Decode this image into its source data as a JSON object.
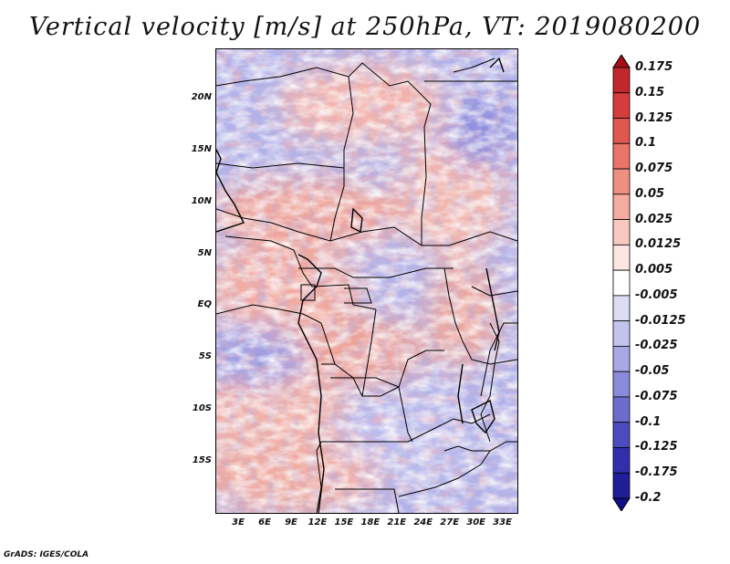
{
  "title": "Vertical velocity [m/s] at 250hPa, VT: 2019080200",
  "footer": "GrADS: IGES/COLA",
  "map": {
    "lat_labels": [
      {
        "label": "20N",
        "lat": 20
      },
      {
        "label": "15N",
        "lat": 15
      },
      {
        "label": "10N",
        "lat": 10
      },
      {
        "label": "5N",
        "lat": 5
      },
      {
        "label": "EQ",
        "lat": 0
      },
      {
        "label": "5S",
        "lat": -5
      },
      {
        "label": "10S",
        "lat": -10
      },
      {
        "label": "15S",
        "lat": -15
      }
    ],
    "lon_labels": [
      {
        "label": "3E",
        "lon": 3
      },
      {
        "label": "6E",
        "lon": 6
      },
      {
        "label": "9E",
        "lon": 9
      },
      {
        "label": "12E",
        "lon": 12
      },
      {
        "label": "15E",
        "lon": 15
      },
      {
        "label": "18E",
        "lon": 18
      },
      {
        "label": "21E",
        "lon": 21
      },
      {
        "label": "24E",
        "lon": 24
      },
      {
        "label": "27E",
        "lon": 27
      },
      {
        "label": "30E",
        "lon": 30
      },
      {
        "label": "33E",
        "lon": 33
      }
    ],
    "lon_range": [
      0.4,
      34.6
    ],
    "lat_range": [
      -19.8,
      24.8
    ]
  },
  "colorbar": {
    "levels": [
      "0.175",
      "0.15",
      "0.125",
      "0.1",
      "0.075",
      "0.05",
      "0.025",
      "0.0125",
      "0.005",
      "-0.005",
      "-0.0125",
      "-0.025",
      "-0.05",
      "-0.075",
      "-0.1",
      "-0.125",
      "-0.175",
      "-0.2"
    ],
    "colors": [
      "#a50f15",
      "#c0282c",
      "#d43d3b",
      "#e0574f",
      "#e97467",
      "#ef8f82",
      "#f5aba0",
      "#f9c9c1",
      "#fde6e2",
      "#ffffff",
      "#dcdcf5",
      "#c3c3ee",
      "#a8a8e6",
      "#8a8ada",
      "#6c6ccd",
      "#4c4cbf",
      "#3030ad",
      "#1e1e98",
      "#10108a"
    ]
  }
}
